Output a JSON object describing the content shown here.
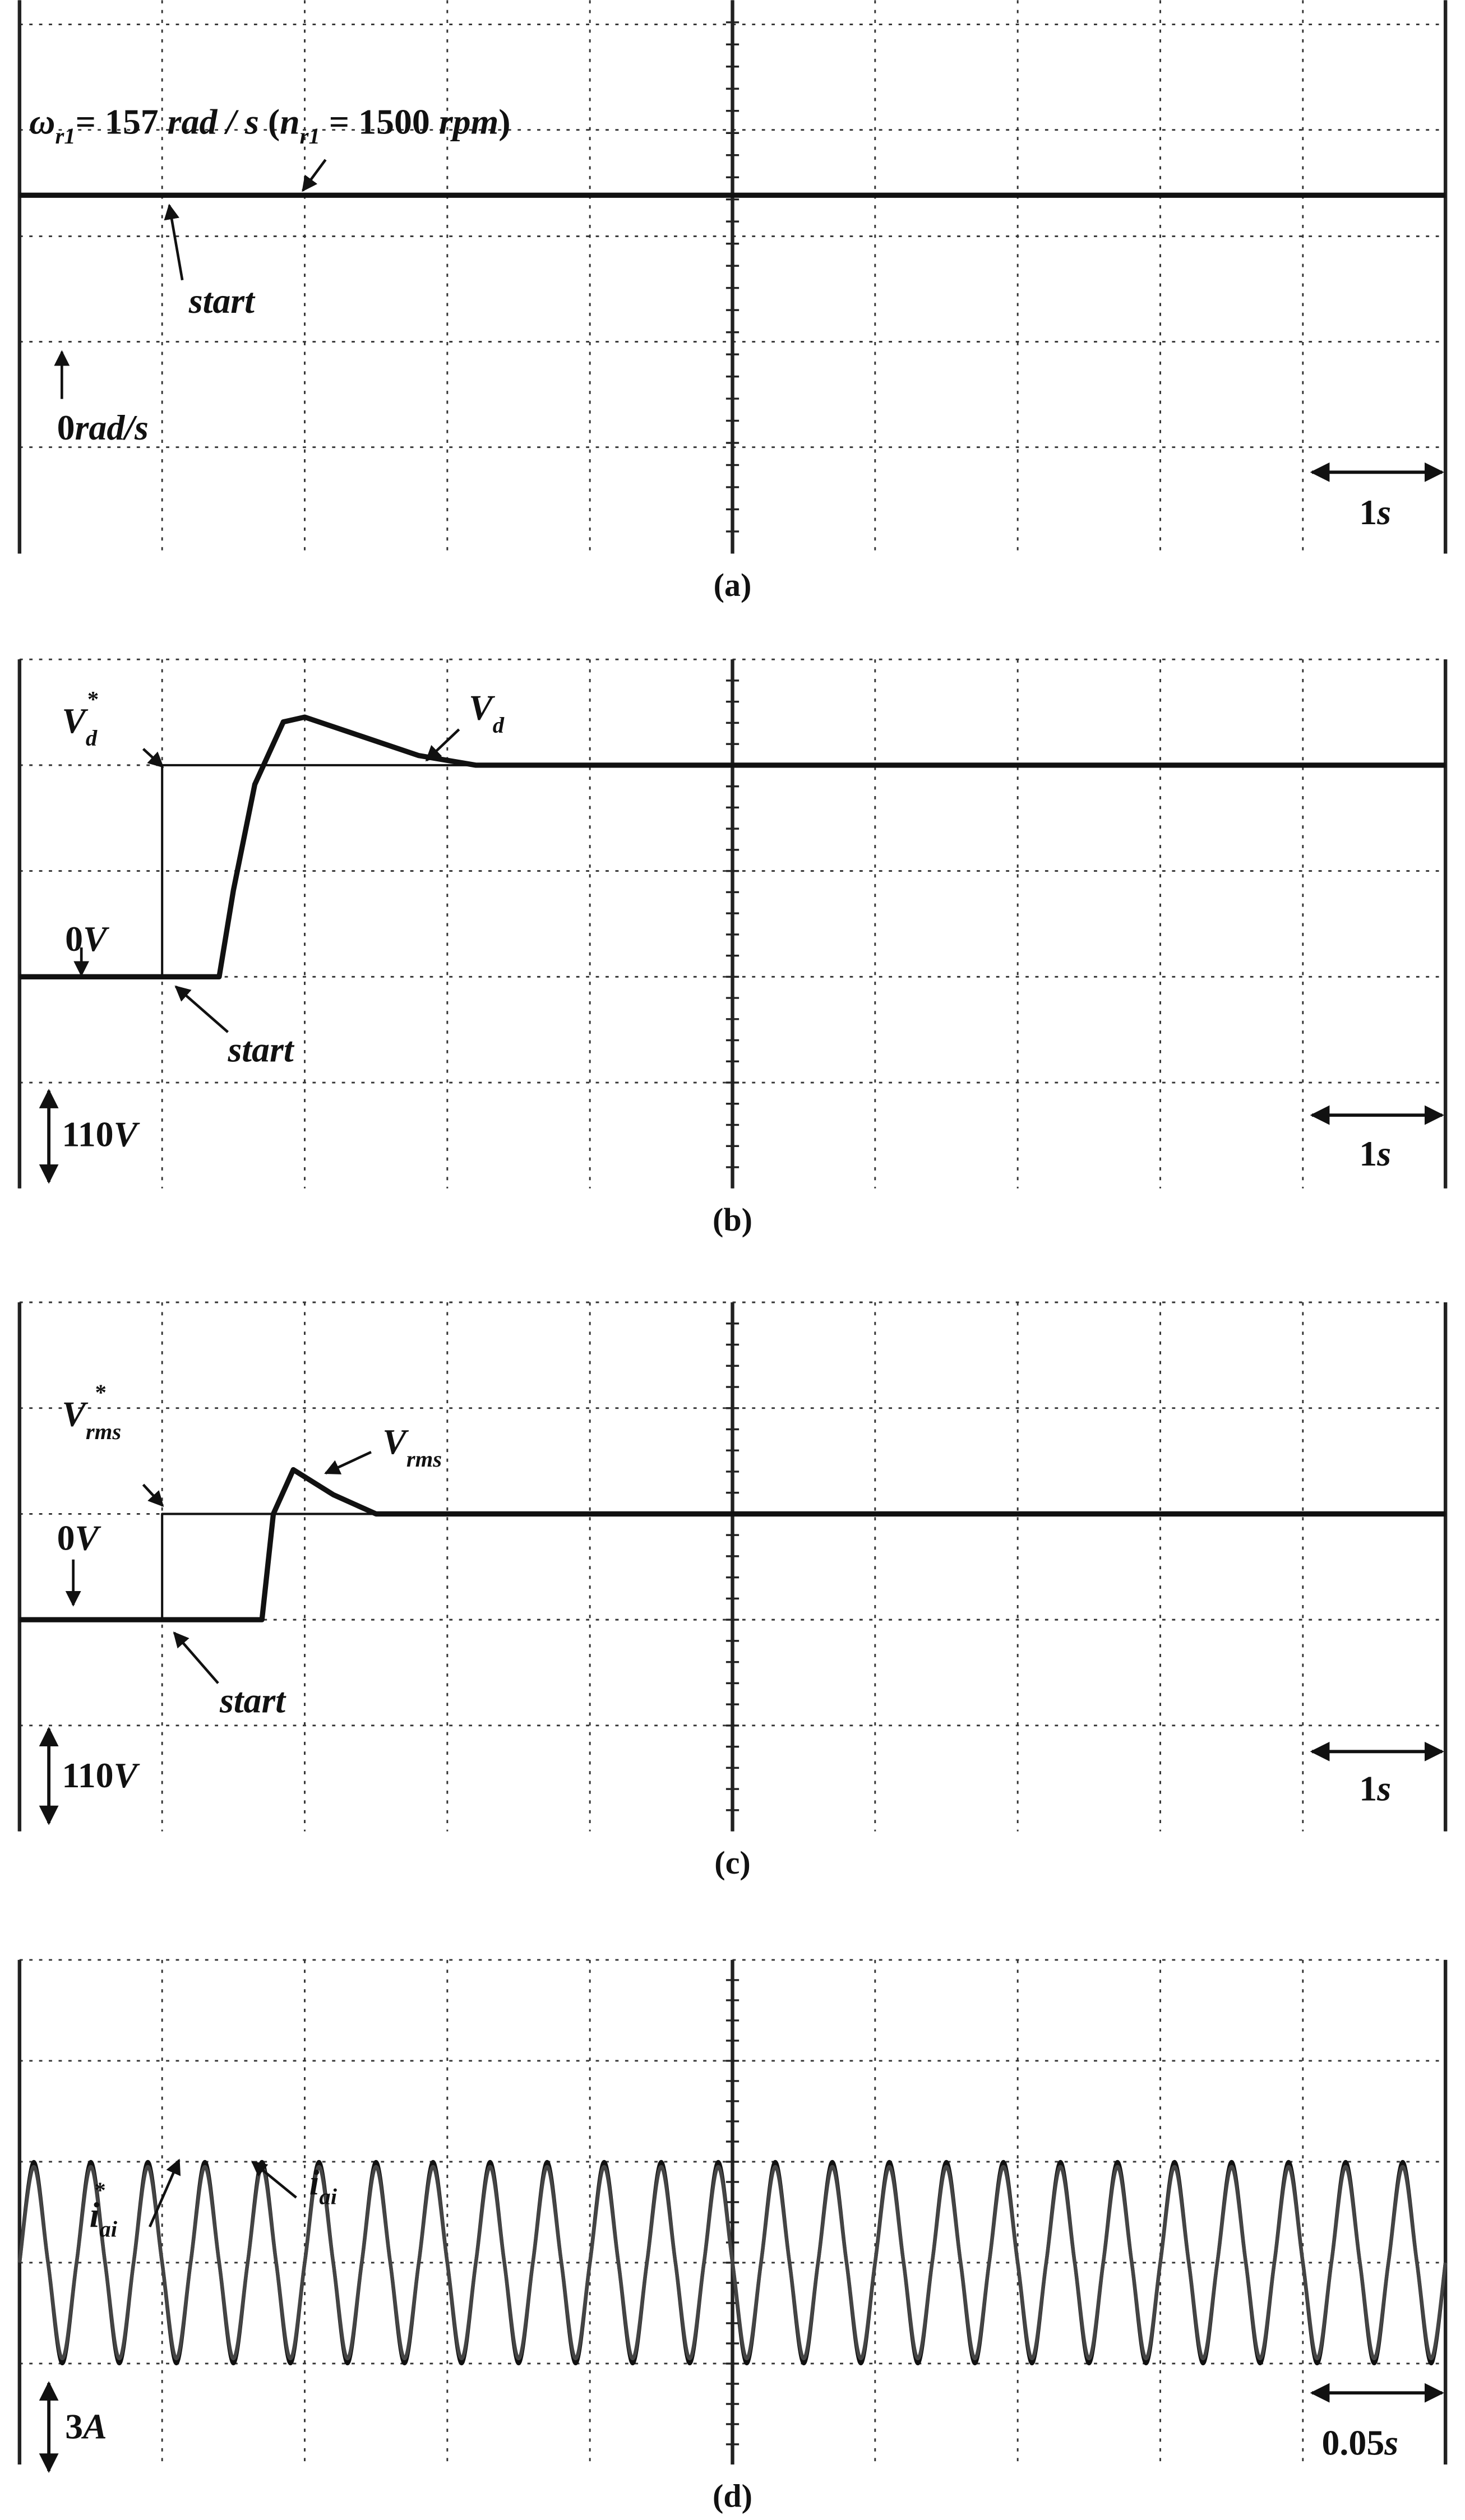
{
  "chart_data": [
    {
      "type": "line",
      "caption": "(a)",
      "xlim": [
        0,
        10
      ],
      "ylim": [
        -227,
        366
      ],
      "xgrid": [
        0,
        1,
        2,
        3,
        4,
        5,
        6,
        7,
        8,
        9,
        10
      ],
      "ygrid": [
        -113,
        0,
        113,
        227,
        340
      ],
      "series": [
        {
          "color": "#111111",
          "x": [
            0,
            10
          ],
          "values": [
            157,
            157
          ]
        }
      ],
      "annotations": [
        {
          "parts": [
            "ω",
            "r1",
            "= 157 ",
            "rad / s ",
            "(",
            "n",
            "r1",
            " = 1500 ",
            "rpm",
            ")"
          ]
        },
        {
          "parts": [
            "start"
          ]
        },
        {
          "parts": [
            "0",
            "rad/s"
          ]
        },
        {
          "parts": [
            "1",
            "s"
          ]
        }
      ]
    },
    {
      "type": "line",
      "caption": "(b)",
      "xlim": [
        0,
        10
      ],
      "ylim": [
        -220,
        330
      ],
      "xgrid": [
        0,
        1,
        2,
        3,
        4,
        5,
        6,
        7,
        8,
        9,
        10
      ],
      "ygrid": [
        -110,
        0,
        110,
        220,
        330
      ],
      "series": [
        {
          "color": "#111111",
          "x": [
            0,
            1,
            1,
            10
          ],
          "values": [
            0,
            0,
            220,
            220
          ]
        },
        {
          "color": "#111111",
          "x": [
            0,
            1.4,
            1.5,
            1.65,
            1.85,
            2,
            2.4,
            2.8,
            3.2,
            10
          ],
          "values": [
            0,
            0,
            90,
            200,
            265,
            270,
            250,
            230,
            220,
            220
          ]
        }
      ],
      "annotations": [
        {
          "parts": [
            "V",
            "d",
            "*"
          ]
        },
        {
          "parts": [
            "V",
            "d"
          ]
        },
        {
          "parts": [
            "0",
            "V"
          ]
        },
        {
          "parts": [
            "start"
          ]
        },
        {
          "parts": [
            "110",
            "V"
          ]
        },
        {
          "parts": [
            "1",
            "s"
          ]
        }
      ]
    },
    {
      "type": "line",
      "caption": "(c)",
      "xlim": [
        0,
        10
      ],
      "ylim": [
        -220,
        330
      ],
      "xgrid": [
        0,
        1,
        2,
        3,
        4,
        5,
        6,
        7,
        8,
        9,
        10
      ],
      "ygrid": [
        -110,
        0,
        110,
        220,
        330
      ],
      "series": [
        {
          "color": "#111111",
          "x": [
            0,
            1,
            1,
            10
          ],
          "values": [
            0,
            0,
            110,
            110
          ]
        },
        {
          "color": "#111111",
          "x": [
            0,
            1.7,
            1.78,
            1.92,
            2.2,
            2.5,
            10
          ],
          "values": [
            0,
            0,
            110,
            156,
            130,
            110,
            110
          ]
        }
      ],
      "annotations": [
        {
          "parts": [
            "V",
            "rms",
            "*"
          ]
        },
        {
          "parts": [
            "V",
            "rms"
          ]
        },
        {
          "parts": [
            "0",
            "V"
          ]
        },
        {
          "parts": [
            "start"
          ]
        },
        {
          "parts": [
            "110",
            "V"
          ]
        },
        {
          "parts": [
            "1",
            "s"
          ]
        }
      ]
    },
    {
      "type": "line",
      "caption": "(d)",
      "smooth": true,
      "xlim": [
        0,
        0.5
      ],
      "ylim": [
        -6,
        9
      ],
      "xgrid": [
        0,
        0.05,
        0.1,
        0.15,
        0.2,
        0.25,
        0.3,
        0.35,
        0.4,
        0.45,
        0.5
      ],
      "ygrid": [
        -3,
        0,
        3,
        6,
        9
      ],
      "series": [
        {
          "color": "#111111",
          "x": [
            0,
            0.005,
            0.01,
            0.015,
            0.02,
            0.025,
            0.03,
            0.035,
            0.04,
            0.045,
            0.05,
            0.055,
            0.06,
            0.065,
            0.07,
            0.075,
            0.08,
            0.085,
            0.09,
            0.095,
            0.1,
            0.105,
            0.11,
            0.115,
            0.12,
            0.125,
            0.13,
            0.135,
            0.14,
            0.145,
            0.15,
            0.155,
            0.16,
            0.165,
            0.17,
            0.175,
            0.18,
            0.185,
            0.19,
            0.195,
            0.2,
            0.205,
            0.21,
            0.215,
            0.22,
            0.225,
            0.23,
            0.235,
            0.24,
            0.245,
            0.25,
            0.255,
            0.26,
            0.265,
            0.27,
            0.275,
            0.28,
            0.285,
            0.29,
            0.295,
            0.3,
            0.305,
            0.31,
            0.315,
            0.32,
            0.325,
            0.33,
            0.335,
            0.34,
            0.345,
            0.35,
            0.355,
            0.36,
            0.365,
            0.37,
            0.375,
            0.38,
            0.385,
            0.39,
            0.395,
            0.4,
            0.405,
            0.41,
            0.415,
            0.42,
            0.425,
            0.43,
            0.435,
            0.44,
            0.445,
            0.45,
            0.455,
            0.46,
            0.465,
            0.47,
            0.475,
            0.48,
            0.485,
            0.49,
            0.495,
            0.5
          ],
          "values": [
            0,
            3,
            0,
            -3,
            0,
            3,
            0,
            -3,
            0,
            3,
            0,
            -3,
            0,
            3,
            0,
            -3,
            0,
            3,
            0,
            -3,
            0,
            3,
            0,
            -3,
            0,
            3,
            0,
            -3,
            0,
            3,
            0,
            -3,
            0,
            3,
            0,
            -3,
            0,
            3,
            0,
            -3,
            0,
            3,
            0,
            -3,
            0,
            3,
            0,
            -3,
            0,
            3,
            0,
            -3,
            0,
            3,
            0,
            -3,
            0,
            3,
            0,
            -3,
            0,
            3,
            0,
            -3,
            0,
            3,
            0,
            -3,
            0,
            3,
            0,
            -3,
            0,
            3,
            0,
            -3,
            0,
            3,
            0,
            -3,
            0,
            3,
            0,
            -3,
            0,
            3,
            0,
            -3,
            0,
            3,
            0,
            -3,
            0,
            3,
            0,
            -3,
            0,
            3,
            0,
            -3,
            0
          ]
        },
        {
          "color": "#444444",
          "x": [
            0,
            0.005,
            0.01,
            0.015,
            0.02,
            0.025,
            0.03,
            0.035,
            0.04,
            0.045,
            0.05,
            0.055,
            0.06,
            0.065,
            0.07,
            0.075,
            0.08,
            0.085,
            0.09,
            0.095,
            0.1,
            0.105,
            0.11,
            0.115,
            0.12,
            0.125,
            0.13,
            0.135,
            0.14,
            0.145,
            0.15,
            0.155,
            0.16,
            0.165,
            0.17,
            0.175,
            0.18,
            0.185,
            0.19,
            0.195,
            0.2,
            0.205,
            0.21,
            0.215,
            0.22,
            0.225,
            0.23,
            0.235,
            0.24,
            0.245,
            0.25,
            0.255,
            0.26,
            0.265,
            0.27,
            0.275,
            0.28,
            0.285,
            0.29,
            0.295,
            0.3,
            0.305,
            0.31,
            0.315,
            0.32,
            0.325,
            0.33,
            0.335,
            0.34,
            0.345,
            0.35,
            0.355,
            0.36,
            0.365,
            0.37,
            0.375,
            0.38,
            0.385,
            0.39,
            0.395,
            0.4,
            0.405,
            0.41,
            0.415,
            0.42,
            0.425,
            0.43,
            0.435,
            0.44,
            0.445,
            0.45,
            0.455,
            0.46,
            0.465,
            0.47,
            0.475,
            0.48,
            0.485,
            0.49,
            0.495,
            0.5
          ],
          "values": [
            0,
            2.85,
            0,
            -2.85,
            0,
            2.85,
            0,
            -2.85,
            0,
            2.85,
            0,
            -2.85,
            0,
            2.85,
            0,
            -2.85,
            0,
            2.85,
            0,
            -2.85,
            0,
            2.85,
            0,
            -2.85,
            0,
            2.85,
            0,
            -2.85,
            0,
            2.85,
            0,
            -2.85,
            0,
            2.85,
            0,
            -2.85,
            0,
            2.85,
            0,
            -2.85,
            0,
            2.85,
            0,
            -2.85,
            0,
            2.85,
            0,
            -2.85,
            0,
            2.85,
            0,
            -2.85,
            0,
            2.85,
            0,
            -2.85,
            0,
            2.85,
            0,
            -2.85,
            0,
            2.85,
            0,
            -2.85,
            0,
            2.85,
            0,
            -2.85,
            0,
            2.85,
            0,
            -2.85,
            0,
            2.85,
            0,
            -2.85,
            0,
            2.85,
            0,
            -2.85,
            0,
            2.85,
            0,
            -2.85,
            0,
            2.85,
            0,
            -2.85,
            0,
            2.85,
            0,
            -2.85,
            0,
            2.85,
            0,
            -2.85,
            0,
            2.85,
            0,
            -2.85,
            0
          ]
        }
      ],
      "annotations": [
        {
          "parts": [
            "i",
            "ai",
            "*"
          ]
        },
        {
          "parts": [
            "i",
            "ai"
          ]
        },
        {
          "parts": [
            "3",
            "A"
          ]
        },
        {
          "parts": [
            "0.05",
            "s"
          ]
        }
      ]
    }
  ]
}
